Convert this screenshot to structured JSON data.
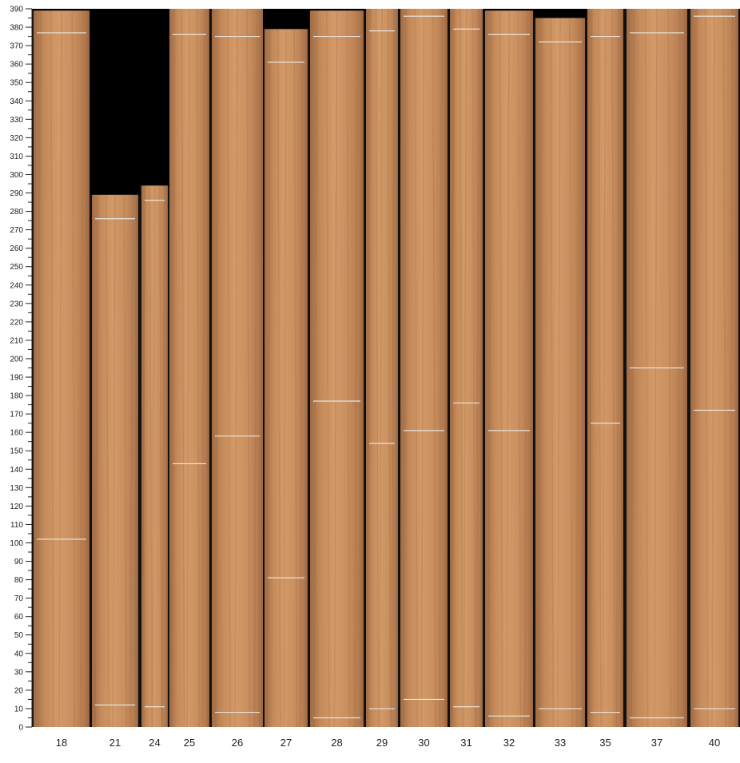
{
  "chart_data": {
    "type": "image-with-scale",
    "y_axis": {
      "range": [
        0,
        390
      ],
      "major_step": 10,
      "minor_step": 5,
      "tick_labels": [
        "0",
        "10",
        "20",
        "30",
        "40",
        "50",
        "60",
        "70",
        "80",
        "90",
        "100",
        "110",
        "120",
        "130",
        "140",
        "150",
        "160",
        "170",
        "180",
        "190",
        "200",
        "210",
        "220",
        "230",
        "240",
        "250",
        "260",
        "270",
        "280",
        "290",
        "300",
        "310",
        "320",
        "330",
        "340",
        "350",
        "360",
        "370",
        "380",
        "390"
      ]
    },
    "colors": {
      "background": "#111111",
      "empty": "#000000",
      "wood_light": "#d39a68",
      "wood_dark": "#a06c45",
      "mark_line": "#e8e4dc"
    },
    "boards": [
      {
        "label": "18",
        "length": 389,
        "marks": [
          377,
          102
        ]
      },
      {
        "label": "21",
        "length": 289,
        "marks": [
          276,
          12
        ]
      },
      {
        "label": "24",
        "length": 294,
        "marks": [
          286,
          11
        ]
      },
      {
        "label": "25",
        "length": 390,
        "marks": [
          376,
          143
        ]
      },
      {
        "label": "26",
        "length": 390,
        "marks": [
          375,
          158,
          8
        ]
      },
      {
        "label": "27",
        "length": 379,
        "marks": [
          361,
          81
        ]
      },
      {
        "label": "28",
        "length": 389,
        "marks": [
          375,
          177,
          5
        ]
      },
      {
        "label": "29",
        "length": 390,
        "marks": [
          378,
          154,
          10
        ]
      },
      {
        "label": "30",
        "length": 390,
        "marks": [
          386,
          161,
          15
        ]
      },
      {
        "label": "31",
        "length": 390,
        "marks": [
          379,
          176,
          11
        ]
      },
      {
        "label": "32",
        "length": 389,
        "marks": [
          376,
          161,
          6
        ]
      },
      {
        "label": "33",
        "length": 385,
        "marks": [
          372,
          10
        ]
      },
      {
        "label": "35",
        "length": 390,
        "marks": [
          375,
          165,
          8
        ]
      },
      {
        "label": "37",
        "length": 390,
        "marks": [
          377,
          195,
          5
        ]
      },
      {
        "label": "40",
        "length": 390,
        "marks": [
          386,
          172,
          10
        ]
      }
    ]
  }
}
